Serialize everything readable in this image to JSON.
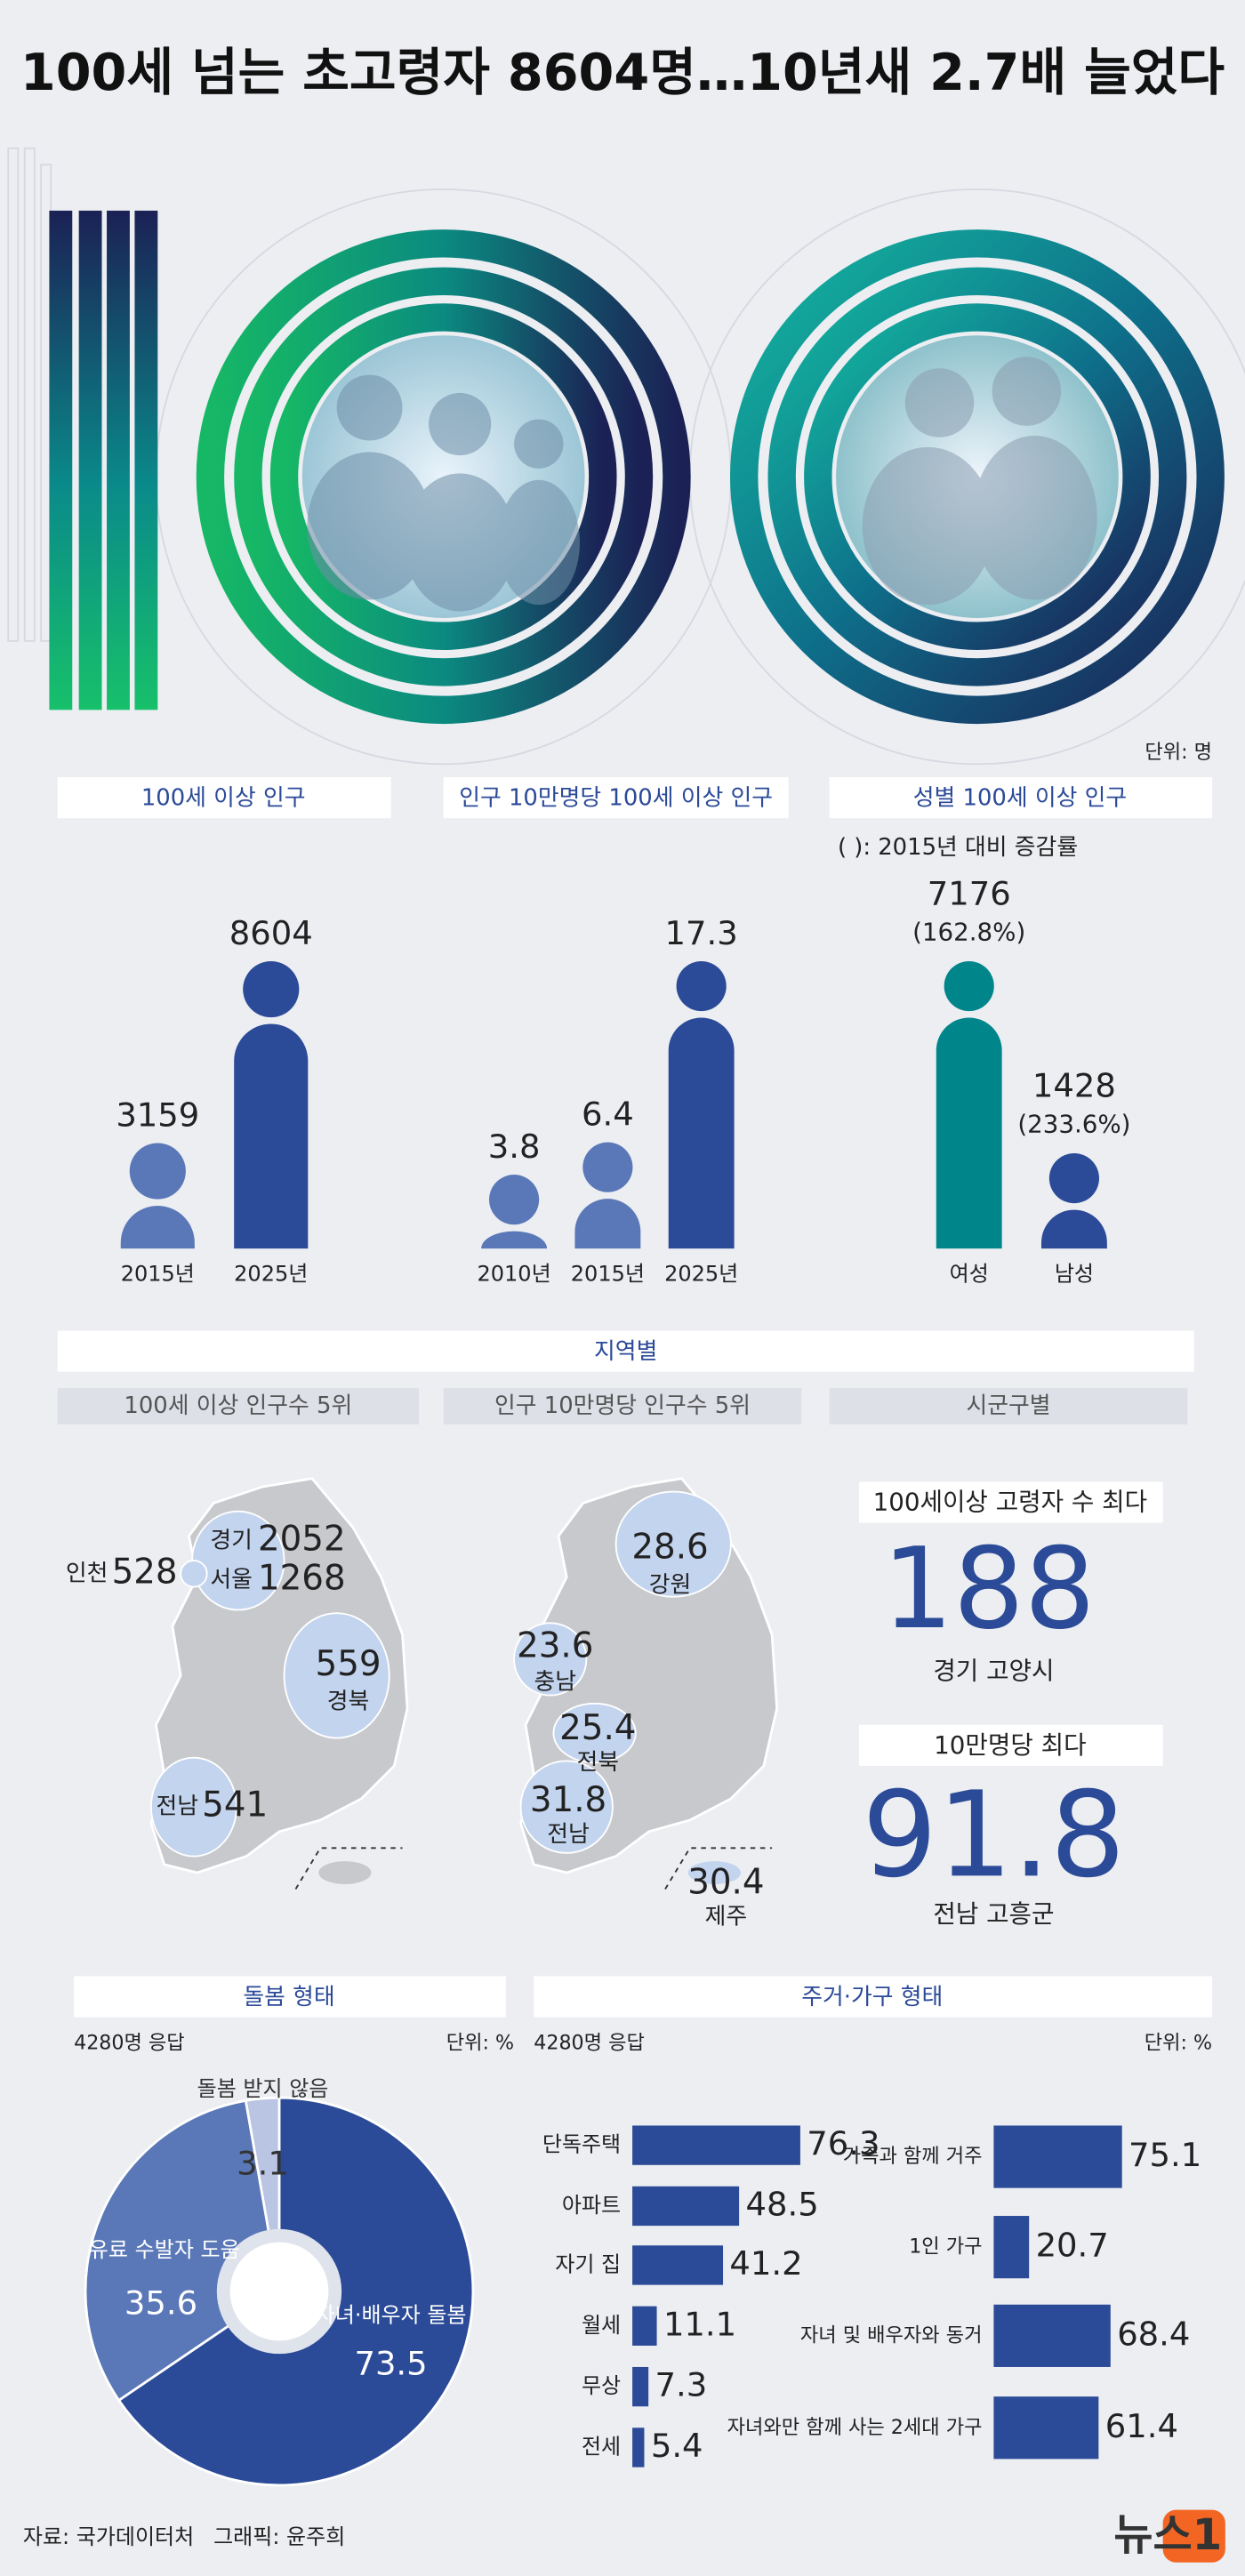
{
  "title": "100세 넘는 초고령자 8604명…10년새 2.7배 늘었다",
  "unit": "단위: 명",
  "chart_data": [
    {
      "type": "pictogram",
      "title": "100세 이상 인구",
      "categories": [
        "2015년",
        "2025년"
      ],
      "values": [
        3159,
        8604
      ],
      "colors": [
        "#5a78b8",
        "#2b4a98"
      ]
    },
    {
      "type": "pictogram",
      "title": "인구 10만명당 100세 이상 인구",
      "categories": [
        "2010년",
        "2015년",
        "2025년"
      ],
      "values": [
        3.8,
        6.4,
        17.3
      ],
      "colors": [
        "#5a78b8",
        "#5a78b8",
        "#2b4a98"
      ]
    },
    {
      "type": "pictogram",
      "title": "성별 100세 이상 인구",
      "note": "(   ): 2015년 대비 증감률",
      "categories": [
        "여성",
        "남성"
      ],
      "values": [
        7176,
        1428
      ],
      "change_labels": [
        "(162.8%)",
        "(233.6%)"
      ],
      "colors": [
        "#00868a",
        "#2b4a98"
      ]
    },
    {
      "type": "pie",
      "title": "돌봄 형태",
      "respondents": "4280명 응답",
      "unit": "단위: %",
      "categories": [
        "자녀·배우자 돌봄",
        "유료 수발자 도움",
        "돌봄 받지 않음"
      ],
      "values": [
        73.5,
        35.6,
        3.1
      ],
      "colors": [
        "#2b4a98",
        "#5a78b8",
        "#b9c5e2"
      ]
    },
    {
      "type": "barh",
      "title": "주거·가구 형태",
      "respondents": "4280명 응답",
      "unit": "단위: %",
      "categories": [
        "단독주택",
        "아파트",
        "자기 집",
        "월세",
        "무상",
        "전세"
      ],
      "values": [
        76.3,
        48.5,
        41.2,
        11.1,
        7.3,
        5.4
      ],
      "color": "#2b4a98"
    },
    {
      "type": "barh",
      "categories": [
        "가족과 함께 거주",
        "1인 가구",
        "자녀 및 배우자와 동거",
        "자녀와만 함께 사는 2세대 가구"
      ],
      "values": [
        75.1,
        20.7,
        68.4,
        61.4
      ],
      "color": "#2b4a98"
    }
  ],
  "regions": {
    "title": "지역별",
    "ranks": [
      {
        "title": "100세 이상 인구수 5위",
        "items": [
          {
            "name": "인천",
            "value": 528
          },
          {
            "name": "경기",
            "value": 2052
          },
          {
            "name": "서울",
            "value": 1268
          },
          {
            "name": "경북",
            "value": 559
          },
          {
            "name": "전남",
            "value": 541
          }
        ]
      },
      {
        "title": "인구 10만명당 인구수 5위",
        "items": [
          {
            "name": "강원",
            "value": 28.6
          },
          {
            "name": "충남",
            "value": 23.6
          },
          {
            "name": "전북",
            "value": 25.4
          },
          {
            "name": "전남",
            "value": 31.8
          },
          {
            "name": "제주",
            "value": 30.4
          }
        ]
      }
    ],
    "district": {
      "title": "시군구별",
      "top": [
        {
          "title": "100세이상 고령자 수 최다",
          "value": 188,
          "place": "경기 고양시"
        },
        {
          "title": "10만명당 최다",
          "value": 91.8,
          "place": "전남 고흥군"
        }
      ]
    }
  },
  "footer": {
    "source": "자료: 국가데이터처",
    "credit": "그래픽: 윤주희",
    "logo": "뉴스1"
  }
}
